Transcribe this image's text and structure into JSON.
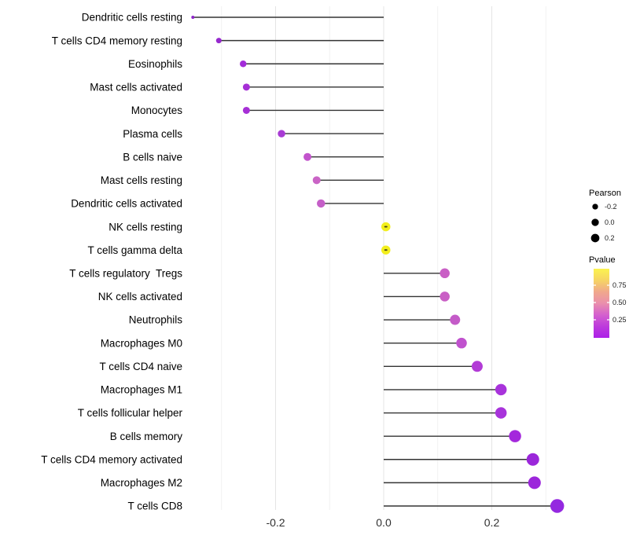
{
  "chart_data": {
    "type": "lollipop",
    "title": "",
    "xlabel": "",
    "ylabel": "",
    "x_tick_labels": [
      "-0.2",
      "0.0",
      "0.2"
    ],
    "x_ticks": [
      -0.2,
      0.0,
      0.2
    ],
    "x_minor_ticks": [
      -0.3,
      -0.1,
      0.1,
      0.3
    ],
    "xlim": [
      -0.39,
      0.36
    ],
    "grid": "major and minor vertical gridlines, light gray on white",
    "legend_position": "right",
    "line_color": "#333333",
    "categories": [
      "Dendritic cells resting",
      "T cells CD4 memory resting",
      "Eosinophils",
      "Mast cells activated",
      "Monocytes",
      "Plasma cells",
      "B cells naive",
      "Mast cells resting",
      "Dendritic cells activated",
      "NK cells resting",
      "T cells gamma delta",
      "T cells regulatory  Tregs",
      "NK cells activated",
      "Neutrophils",
      "Macrophages M0",
      "T cells CD4 naive",
      "Macrophages M1",
      "T cells follicular helper",
      "B cells memory",
      "T cells CD4 memory activated",
      "Macrophages M2",
      "T cells CD8"
    ],
    "points": [
      {
        "label": "Dendritic cells resting",
        "pearson": -0.353,
        "size": 4,
        "color": "#8E25C8"
      },
      {
        "label": "T cells CD4 memory resting",
        "pearson": -0.305,
        "size": 7,
        "color": "#9629CE"
      },
      {
        "label": "Eosinophils",
        "pearson": -0.26,
        "size": 8.5,
        "color": "#A32CD9"
      },
      {
        "label": "Mast cells activated",
        "pearson": -0.254,
        "size": 9,
        "color": "#A62FD6"
      },
      {
        "label": "Monocytes",
        "pearson": -0.254,
        "size": 9,
        "color": "#A62FD6"
      },
      {
        "label": "Plasma cells",
        "pearson": -0.189,
        "size": 9.5,
        "color": "#A83BD4"
      },
      {
        "label": "B cells naive",
        "pearson": -0.141,
        "size": 10,
        "color": "#C254CC"
      },
      {
        "label": "Mast cells resting",
        "pearson": -0.124,
        "size": 10,
        "color": "#CA64C6"
      },
      {
        "label": "Dendritic cells activated",
        "pearson": -0.116,
        "size": 10.5,
        "color": "#C55FC8"
      },
      {
        "label": "NK cells resting",
        "pearson": 0.004,
        "size": 11.5,
        "color": "#F2EE1C",
        "center_mark": true
      },
      {
        "label": "T cells gamma delta",
        "pearson": 0.004,
        "size": 11.5,
        "color": "#F2EE1C",
        "center_mark": true
      },
      {
        "label": "T cells regulatory  Tregs",
        "pearson": 0.113,
        "size": 12.5,
        "color": "#C95FC5"
      },
      {
        "label": "NK cells activated",
        "pearson": 0.113,
        "size": 12.5,
        "color": "#C95FC5"
      },
      {
        "label": "Neutrophils",
        "pearson": 0.132,
        "size": 13,
        "color": "#C45BC8"
      },
      {
        "label": "Macrophages M0",
        "pearson": 0.144,
        "size": 13.5,
        "color": "#C052CE"
      },
      {
        "label": "T cells CD4 naive",
        "pearson": 0.173,
        "size": 14,
        "color": "#B23BD6"
      },
      {
        "label": "Macrophages M1",
        "pearson": 0.217,
        "size": 14.5,
        "color": "#A833DB"
      },
      {
        "label": "T cells follicular helper",
        "pearson": 0.217,
        "size": 14.5,
        "color": "#A833DB"
      },
      {
        "label": "B cells memory",
        "pearson": 0.243,
        "size": 15.5,
        "color": "#A428DC"
      },
      {
        "label": "T cells CD4 memory activated",
        "pearson": 0.276,
        "size": 16,
        "color": "#9B27DA"
      },
      {
        "label": "Macrophages M2",
        "pearson": 0.279,
        "size": 16,
        "color": "#9C26DB"
      },
      {
        "label": "T cells CD8",
        "pearson": 0.321,
        "size": 17.5,
        "color": "#9428E0"
      }
    ],
    "legend_pearson": {
      "title": "Pearson",
      "dot_color": "#000000",
      "entries": [
        {
          "label": "-0.2",
          "diameter": 7.3
        },
        {
          "label": "0.0",
          "diameter": 9.3
        },
        {
          "label": "0.2",
          "diameter": 10.7
        }
      ]
    },
    "legend_pvalue": {
      "title": "Pvalue",
      "tick_labels": [
        "0.75",
        "0.50",
        "0.25"
      ],
      "gradient_top_to_bottom": [
        "#FBF34F",
        "#F6D464",
        "#F0A88C",
        "#EA8FAC",
        "#D460CE",
        "#BD3BDC",
        "#AC1FE8"
      ]
    }
  },
  "colors": {
    "background": "#FFFFFF",
    "major_grid": "#E4E4E4",
    "minor_grid": "#F1F1F1",
    "stick": "#333333",
    "axis_text": "#303030"
  }
}
